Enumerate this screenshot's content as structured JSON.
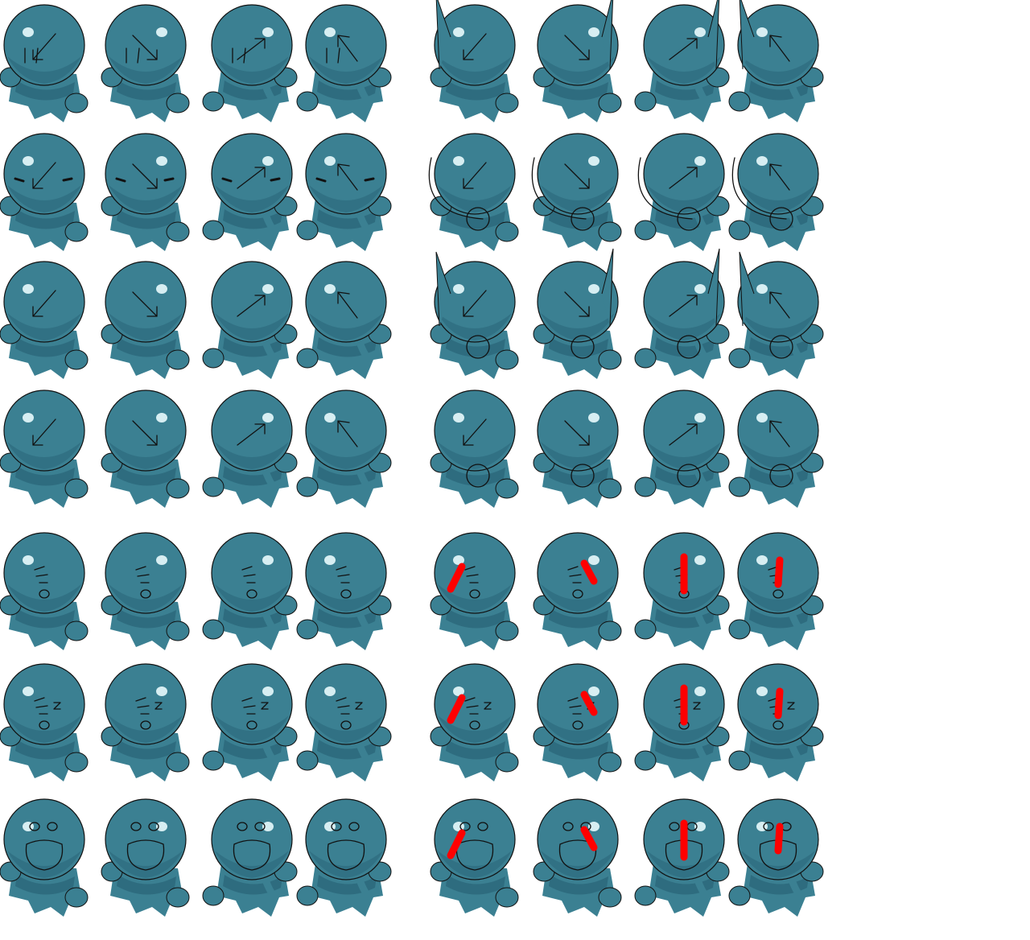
{
  "sheet": {
    "background": "#ffffff",
    "body_color": "#3b8092",
    "shadow_color": "#2a6478",
    "highlight_color": "#d7eef2",
    "line_color": "#111111",
    "mark_color": "#ff0000",
    "groups": [
      {
        "name": "left",
        "rows": [
          [
            "sw-look",
            "se-look",
            "ne-look",
            "nw-look"
          ],
          [
            "sw-squint",
            "se-squint",
            "ne-squint",
            "nw-squint"
          ],
          [
            "sw",
            "se",
            "ne",
            "nw"
          ],
          [
            "sw",
            "se",
            "ne",
            "nw"
          ],
          [
            "sleep",
            "sleep",
            "sleep",
            "sleep"
          ],
          [
            "sleep-z",
            "sleep-z",
            "sleep-z",
            "sleep-z"
          ],
          [
            "shout",
            "shout",
            "shout",
            "shout"
          ]
        ]
      },
      {
        "name": "right",
        "rows": [
          [
            "sw-slash",
            "se-slash",
            "ne-slash",
            "nw-slash"
          ],
          [
            "sw-spin",
            "se-spin",
            "ne-spin",
            "nw-spin"
          ],
          [
            "sw-swing",
            "se-swing",
            "ne-swing",
            "nw-swing"
          ],
          [
            "sw-ball",
            "se-ball",
            "ne-ball",
            "nw-ball"
          ],
          [
            "sleep-hit",
            "sleep-hit",
            "sleep-hit",
            "sleep-hit"
          ],
          [
            "sleep-z-hit",
            "sleep-z-hit",
            "sleep-z-hit",
            "sleep-z-hit"
          ],
          [
            "shout-hit",
            "shout-hit",
            "shout-hit",
            "shout-hit"
          ]
        ]
      }
    ]
  }
}
